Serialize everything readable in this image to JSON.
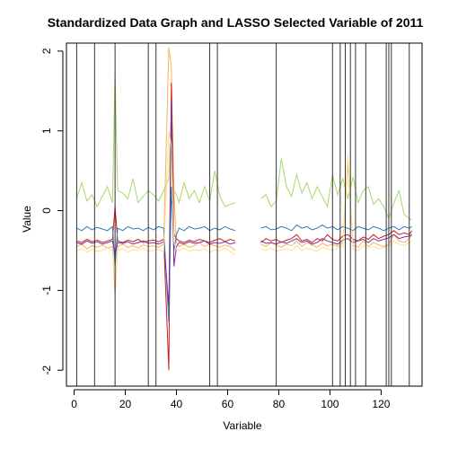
{
  "chart_data": {
    "type": "line",
    "title": "Standardized Data Graph and LASSO Selected Variable of 2011",
    "xlabel": "Variable",
    "ylabel": "Value",
    "xlim": [
      -3,
      136
    ],
    "ylim": [
      -2.2,
      2.1
    ],
    "x_ticks": [
      0,
      20,
      40,
      60,
      80,
      100,
      120
    ],
    "x_tick_labels": [
      "0",
      "20",
      "40",
      "60",
      "80",
      "100",
      "120"
    ],
    "y_ticks": [
      -2,
      -1,
      0,
      1,
      2
    ],
    "y_tick_labels": [
      "-2",
      "-1",
      "0",
      "1",
      "2"
    ],
    "selected_variables": [
      1,
      8,
      16,
      29,
      32,
      53,
      56,
      79,
      101,
      104,
      106,
      108,
      110,
      114,
      122,
      123,
      124,
      131
    ],
    "missing_range": [
      64,
      72
    ],
    "series": [
      {
        "color": "#a6d96a",
        "x": [
          1,
          3,
          5,
          7,
          9,
          11,
          13,
          15,
          16,
          17,
          19,
          21,
          23,
          25,
          27,
          29,
          31,
          33,
          35,
          37,
          38,
          39,
          40,
          41,
          43,
          45,
          47,
          49,
          51,
          53,
          55,
          57,
          59,
          61,
          63,
          73,
          75,
          77,
          79,
          81,
          83,
          85,
          87,
          89,
          91,
          93,
          95,
          97,
          99,
          101,
          103,
          105,
          107,
          109,
          111,
          113,
          115,
          117,
          119,
          121,
          123,
          125,
          127,
          129,
          131,
          132
        ],
        "values": [
          0.15,
          0.35,
          0.12,
          0.2,
          0.05,
          0.18,
          0.3,
          0.1,
          1.72,
          0.25,
          0.22,
          0.15,
          0.4,
          0.1,
          0.18,
          0.25,
          0.2,
          0.12,
          0.25,
          0.4,
          1.2,
          0.25,
          0.2,
          0.1,
          0.35,
          0.15,
          0.25,
          0.1,
          0.3,
          0.12,
          0.5,
          0.18,
          0.05,
          0.08,
          0.1,
          0.15,
          0.2,
          0.05,
          0.12,
          0.65,
          0.3,
          0.18,
          0.45,
          0.22,
          0.35,
          0.15,
          0.3,
          0.18,
          0.05,
          0.45,
          0.2,
          0.4,
          0.15,
          0.42,
          0.1,
          0.25,
          0.3,
          0.08,
          0.15,
          0.05,
          -0.1,
          0.1,
          0.25,
          -0.05,
          -0.1,
          -0.12
        ]
      },
      {
        "color": "#fdae61",
        "x": [
          1,
          3,
          5,
          7,
          9,
          11,
          13,
          15,
          16,
          17,
          19,
          21,
          23,
          25,
          27,
          29,
          31,
          33,
          35,
          37,
          38,
          39,
          40,
          41,
          43,
          45,
          47,
          49,
          51,
          53,
          55,
          57,
          59,
          61,
          63,
          73,
          75,
          77,
          79,
          81,
          83,
          85,
          87,
          89,
          91,
          93,
          95,
          97,
          99,
          101,
          103,
          105,
          107,
          109,
          111,
          113,
          115,
          117,
          119,
          121,
          123,
          125,
          127,
          129,
          131,
          132
        ],
        "values": [
          -0.45,
          -0.42,
          -0.48,
          -0.44,
          -0.46,
          -0.43,
          -0.47,
          -0.45,
          -1.05,
          -0.45,
          -0.42,
          -0.46,
          -0.44,
          -0.47,
          -0.43,
          -0.45,
          -0.44,
          -0.46,
          -0.42,
          2.05,
          1.8,
          0.2,
          -0.4,
          -0.45,
          -0.42,
          -0.46,
          -0.44,
          -0.4,
          -0.45,
          -0.42,
          -0.44,
          -0.46,
          -0.43,
          -0.45,
          -0.5,
          -0.42,
          -0.45,
          -0.4,
          -0.43,
          -0.46,
          -0.42,
          -0.44,
          -0.38,
          -0.45,
          -0.4,
          -0.43,
          -0.46,
          -0.41,
          -0.44,
          -0.42,
          -0.45,
          -0.4,
          0.6,
          -0.43,
          -0.46,
          -0.38,
          -0.45,
          -0.4,
          -0.43,
          -0.45,
          -0.42,
          -0.3,
          -0.38,
          -0.4,
          -0.35,
          -0.3
        ]
      },
      {
        "color": "#d7191c",
        "x": [
          1,
          3,
          5,
          7,
          9,
          11,
          13,
          15,
          16,
          17,
          19,
          21,
          23,
          25,
          27,
          29,
          31,
          33,
          35,
          37,
          38,
          39,
          40,
          41,
          43,
          45,
          47,
          49,
          51,
          53,
          55,
          57,
          59,
          61,
          63,
          73,
          75,
          77,
          79,
          81,
          83,
          85,
          87,
          89,
          91,
          93,
          95,
          97,
          99,
          101,
          103,
          105,
          107,
          109,
          111,
          113,
          115,
          117,
          119,
          121,
          123,
          125,
          127,
          129,
          131,
          132
        ],
        "values": [
          -0.38,
          -0.4,
          -0.36,
          -0.39,
          -0.37,
          -0.4,
          -0.38,
          -0.36,
          0.05,
          -0.38,
          -0.4,
          -0.37,
          -0.39,
          -0.36,
          -0.4,
          -0.38,
          -0.37,
          -0.39,
          -0.36,
          -2.0,
          1.6,
          -0.3,
          -0.35,
          -0.38,
          -0.4,
          -0.37,
          -0.39,
          -0.36,
          -0.38,
          -0.4,
          -0.37,
          -0.35,
          -0.39,
          -0.36,
          -0.38,
          -0.4,
          -0.35,
          -0.38,
          -0.36,
          -0.4,
          -0.37,
          -0.35,
          -0.3,
          -0.38,
          -0.36,
          -0.4,
          -0.35,
          -0.38,
          -0.3,
          -0.36,
          -0.38,
          -0.32,
          -0.3,
          -0.36,
          -0.38,
          -0.33,
          -0.36,
          -0.3,
          -0.35,
          -0.32,
          -0.3,
          -0.25,
          -0.3,
          -0.28,
          -0.3,
          -0.25
        ]
      },
      {
        "color": "#2c7bb6",
        "x": [
          1,
          3,
          5,
          7,
          9,
          11,
          13,
          15,
          16,
          17,
          19,
          21,
          23,
          25,
          27,
          29,
          31,
          33,
          35,
          37,
          38,
          39,
          40,
          41,
          43,
          45,
          47,
          49,
          51,
          53,
          55,
          57,
          59,
          61,
          63,
          73,
          75,
          77,
          79,
          81,
          83,
          85,
          87,
          89,
          91,
          93,
          95,
          97,
          99,
          101,
          103,
          105,
          107,
          109,
          111,
          113,
          115,
          117,
          119,
          121,
          123,
          125,
          127,
          129,
          131,
          132
        ],
        "values": [
          -0.22,
          -0.25,
          -0.2,
          -0.24,
          -0.21,
          -0.23,
          -0.25,
          -0.2,
          -0.7,
          -0.22,
          -0.25,
          -0.2,
          -0.23,
          -0.22,
          -0.25,
          -0.21,
          -0.24,
          -0.2,
          -0.22,
          -1.4,
          0.3,
          -0.5,
          -0.3,
          -0.22,
          -0.25,
          -0.2,
          -0.23,
          -0.22,
          -0.2,
          -0.25,
          -0.22,
          -0.24,
          -0.2,
          -0.23,
          -0.25,
          -0.22,
          -0.2,
          -0.24,
          -0.23,
          -0.2,
          -0.22,
          -0.25,
          -0.18,
          -0.22,
          -0.2,
          -0.24,
          -0.22,
          -0.18,
          -0.22,
          -0.2,
          -0.24,
          -0.2,
          -0.22,
          -0.25,
          -0.2,
          -0.22,
          -0.24,
          -0.2,
          -0.22,
          -0.25,
          -0.22,
          -0.2,
          -0.24,
          -0.2,
          -0.22,
          -0.2
        ]
      },
      {
        "color": "#7b3294",
        "x": [
          1,
          3,
          5,
          7,
          9,
          11,
          13,
          15,
          16,
          17,
          19,
          21,
          23,
          25,
          27,
          29,
          31,
          33,
          35,
          37,
          38,
          39,
          40,
          41,
          43,
          45,
          47,
          49,
          51,
          53,
          55,
          57,
          59,
          61,
          63,
          73,
          75,
          77,
          79,
          81,
          83,
          85,
          87,
          89,
          91,
          93,
          95,
          97,
          99,
          101,
          103,
          105,
          107,
          109,
          111,
          113,
          115,
          117,
          119,
          121,
          123,
          125,
          127,
          129,
          131,
          132
        ],
        "values": [
          -0.4,
          -0.42,
          -0.38,
          -0.41,
          -0.39,
          -0.42,
          -0.4,
          -0.38,
          -0.55,
          -0.4,
          -0.41,
          -0.39,
          -0.42,
          -0.4,
          -0.38,
          -0.41,
          -0.4,
          -0.42,
          -0.39,
          -1.2,
          1.4,
          -0.7,
          -0.45,
          -0.4,
          -0.42,
          -0.39,
          -0.41,
          -0.4,
          -0.38,
          -0.42,
          -0.4,
          -0.41,
          -0.39,
          -0.42,
          -0.4,
          -0.38,
          -0.41,
          -0.4,
          -0.42,
          -0.39,
          -0.41,
          -0.38,
          -0.35,
          -0.4,
          -0.38,
          -0.42,
          -0.4,
          -0.35,
          -0.38,
          -0.4,
          -0.42,
          -0.37,
          -0.35,
          -0.4,
          -0.38,
          -0.36,
          -0.4,
          -0.35,
          -0.38,
          -0.36,
          -0.34,
          -0.3,
          -0.35,
          -0.33,
          -0.32,
          -0.3
        ]
      },
      {
        "color": "#fee08b",
        "x": [
          1,
          3,
          5,
          7,
          9,
          11,
          13,
          15,
          16,
          17,
          19,
          21,
          23,
          25,
          27,
          29,
          31,
          33,
          35,
          37,
          38,
          39,
          40,
          41,
          43,
          45,
          47,
          49,
          51,
          53,
          55,
          57,
          59,
          61,
          63,
          73,
          75,
          77,
          79,
          81,
          83,
          85,
          87,
          89,
          91,
          93,
          95,
          97,
          99,
          101,
          103,
          105,
          107,
          109,
          111,
          113,
          115,
          117,
          119,
          121,
          123,
          125,
          127,
          129,
          131,
          132
        ],
        "values": [
          -0.5,
          -0.48,
          -0.52,
          -0.49,
          -0.51,
          -0.5,
          -0.47,
          -0.5,
          -0.95,
          -0.5,
          -0.48,
          -0.52,
          -0.49,
          -0.5,
          -0.47,
          -0.51,
          -0.5,
          -0.48,
          -0.52,
          1.0,
          0.8,
          -0.4,
          -0.48,
          -0.5,
          -0.47,
          -0.51,
          -0.49,
          -0.5,
          -0.48,
          -0.52,
          -0.49,
          -0.5,
          -0.47,
          -0.51,
          -0.55,
          -0.48,
          -0.5,
          -0.47,
          -0.51,
          -0.49,
          -0.48,
          -0.5,
          -0.44,
          -0.5,
          -0.47,
          -0.49,
          -0.51,
          -0.46,
          -0.48,
          -0.5,
          -0.47,
          -0.45,
          0.7,
          -0.48,
          -0.5,
          -0.44,
          -0.47,
          -0.45,
          -0.48,
          -0.46,
          -0.44,
          -0.38,
          -0.42,
          -0.44,
          -0.4,
          -0.38
        ]
      }
    ]
  }
}
